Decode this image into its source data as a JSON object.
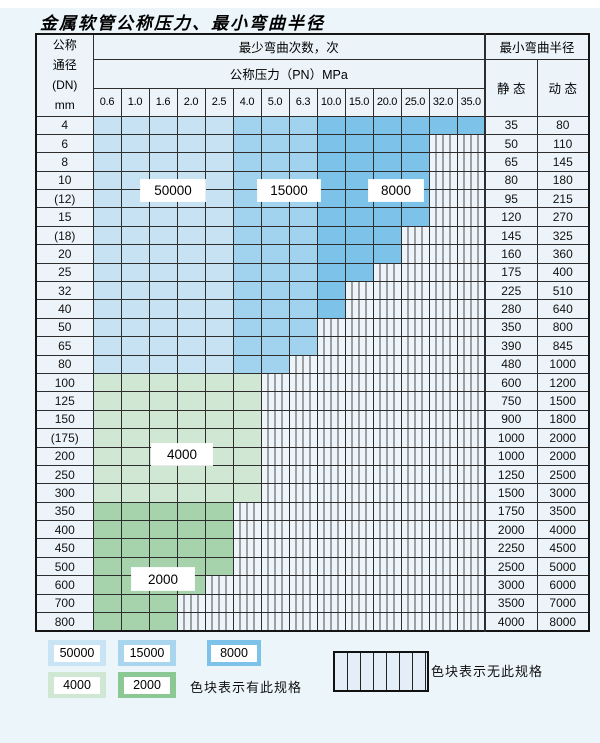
{
  "page": {
    "title": "金属软管公称压力、最小弯曲半径"
  },
  "table": {
    "header": {
      "dn_lines": [
        "公称",
        "通径",
        "(DN)",
        "mm"
      ],
      "bend_cycles_label": "最少弯曲次数，次",
      "pressure_label": "公称压力（PN）MPa",
      "radius_label": "最小弯曲半径",
      "static_label": "静 态",
      "dynamic_label": "动 态",
      "pressure_columns": [
        "0.6",
        "1.0",
        "1.6",
        "2.0",
        "2.5",
        "4.0",
        "5.0",
        "6.3",
        "10.0",
        "15.0",
        "20.0",
        "25.0",
        "32.0",
        "35.0"
      ]
    },
    "palette_rules": {
      "blue": {
        "columns_0_to_4": "50000",
        "columns_5_to_7": "15000",
        "columns_8_to_13": "8000"
      },
      "green_light": "4000",
      "green_dark": "2000"
    },
    "rows": [
      {
        "dn": "4",
        "colored_columns": 14,
        "palette": "blue",
        "static": "35",
        "dynamic": "80"
      },
      {
        "dn": "6",
        "colored_columns": 12,
        "palette": "blue",
        "static": "50",
        "dynamic": "110"
      },
      {
        "dn": "8",
        "colored_columns": 12,
        "palette": "blue",
        "static": "65",
        "dynamic": "145"
      },
      {
        "dn": "10",
        "colored_columns": 12,
        "palette": "blue",
        "static": "80",
        "dynamic": "180"
      },
      {
        "dn": "(12)",
        "colored_columns": 12,
        "palette": "blue",
        "static": "95",
        "dynamic": "215"
      },
      {
        "dn": "15",
        "colored_columns": 12,
        "palette": "blue",
        "static": "120",
        "dynamic": "270"
      },
      {
        "dn": "(18)",
        "colored_columns": 11,
        "palette": "blue",
        "static": "145",
        "dynamic": "325"
      },
      {
        "dn": "20",
        "colored_columns": 11,
        "palette": "blue",
        "static": "160",
        "dynamic": "360"
      },
      {
        "dn": "25",
        "colored_columns": 10,
        "palette": "blue",
        "static": "175",
        "dynamic": "400"
      },
      {
        "dn": "32",
        "colored_columns": 9,
        "palette": "blue",
        "static": "225",
        "dynamic": "510"
      },
      {
        "dn": "40",
        "colored_columns": 9,
        "palette": "blue",
        "static": "280",
        "dynamic": "640"
      },
      {
        "dn": "50",
        "colored_columns": 8,
        "palette": "blue",
        "static": "350",
        "dynamic": "800"
      },
      {
        "dn": "65",
        "colored_columns": 8,
        "palette": "blue",
        "static": "390",
        "dynamic": "845"
      },
      {
        "dn": "80",
        "colored_columns": 7,
        "palette": "blue",
        "static": "480",
        "dynamic": "1000"
      },
      {
        "dn": "100",
        "colored_columns": 6,
        "palette": "green_light",
        "static": "600",
        "dynamic": "1200"
      },
      {
        "dn": "125",
        "colored_columns": 6,
        "palette": "green_light",
        "static": "750",
        "dynamic": "1500"
      },
      {
        "dn": "150",
        "colored_columns": 6,
        "palette": "green_light",
        "static": "900",
        "dynamic": "1800"
      },
      {
        "dn": "(175)",
        "colored_columns": 6,
        "palette": "green_light",
        "static": "1000",
        "dynamic": "2000"
      },
      {
        "dn": "200",
        "colored_columns": 6,
        "palette": "green_light",
        "static": "1000",
        "dynamic": "2000"
      },
      {
        "dn": "250",
        "colored_columns": 6,
        "palette": "green_light",
        "static": "1250",
        "dynamic": "2500"
      },
      {
        "dn": "300",
        "colored_columns": 6,
        "palette": "green_light",
        "static": "1500",
        "dynamic": "3000"
      },
      {
        "dn": "350",
        "colored_columns": 5,
        "palette": "green_dark",
        "static": "1750",
        "dynamic": "3500"
      },
      {
        "dn": "400",
        "colored_columns": 5,
        "palette": "green_dark",
        "static": "2000",
        "dynamic": "4000"
      },
      {
        "dn": "450",
        "colored_columns": 5,
        "palette": "green_dark",
        "static": "2250",
        "dynamic": "4500"
      },
      {
        "dn": "500",
        "colored_columns": 5,
        "palette": "green_dark",
        "static": "2500",
        "dynamic": "5000"
      },
      {
        "dn": "600",
        "colored_columns": 4,
        "palette": "green_dark",
        "static": "3000",
        "dynamic": "6000"
      },
      {
        "dn": "700",
        "colored_columns": 3,
        "palette": "green_dark",
        "static": "3500",
        "dynamic": "7000"
      },
      {
        "dn": "800",
        "colored_columns": 3,
        "palette": "green_dark",
        "static": "4000",
        "dynamic": "8000"
      }
    ]
  },
  "region_labels": {
    "r50000": "50000",
    "r15000": "15000",
    "r8000": "8000",
    "r4000": "4000",
    "r2000": "2000"
  },
  "legend": {
    "swatches": [
      {
        "value": "50000",
        "color": "#c9e4f4"
      },
      {
        "value": "15000",
        "color": "#a9d5ef"
      },
      {
        "value": "8000",
        "color": "#7cc2e9"
      },
      {
        "value": "4000",
        "color": "#d0e7d3"
      },
      {
        "value": "2000",
        "color": "#8cc893"
      }
    ],
    "has_spec_text": "色块表示有此规格",
    "no_spec_text": "色块表示无此规格"
  },
  "colors": {
    "band_50000": "#c6e2f3",
    "band_15000": "#a2d3ee",
    "band_8000": "#7cc2e9",
    "band_4000": "#d0e7d3",
    "band_2000": "#a7d3ac",
    "cell_bg": "#ecf4f9",
    "grid": "#2e2e2e"
  }
}
